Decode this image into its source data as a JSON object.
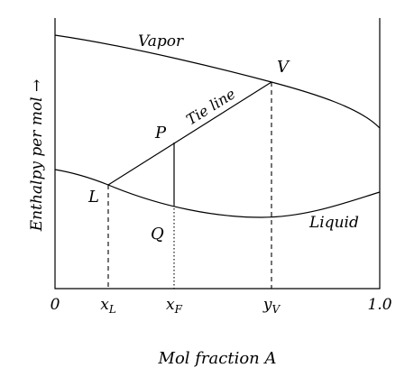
{
  "curves": {
    "vapor": "Vapor",
    "liquid": "Liquid",
    "tie_line": "Tie line"
  },
  "points": {
    "V": "V",
    "P": "P",
    "L": "L",
    "Q": "Q"
  },
  "axis": {
    "ylabel": "Enthalpy per mol →",
    "xlabel": "Mol fraction A",
    "tick_labels": {
      "zero": "0",
      "x_L": "x",
      "x_L_sub": "L",
      "x_F": "x",
      "x_F_sub": "F",
      "y_V": "y",
      "y_V_sub": "V",
      "one": "1.0"
    }
  }
}
